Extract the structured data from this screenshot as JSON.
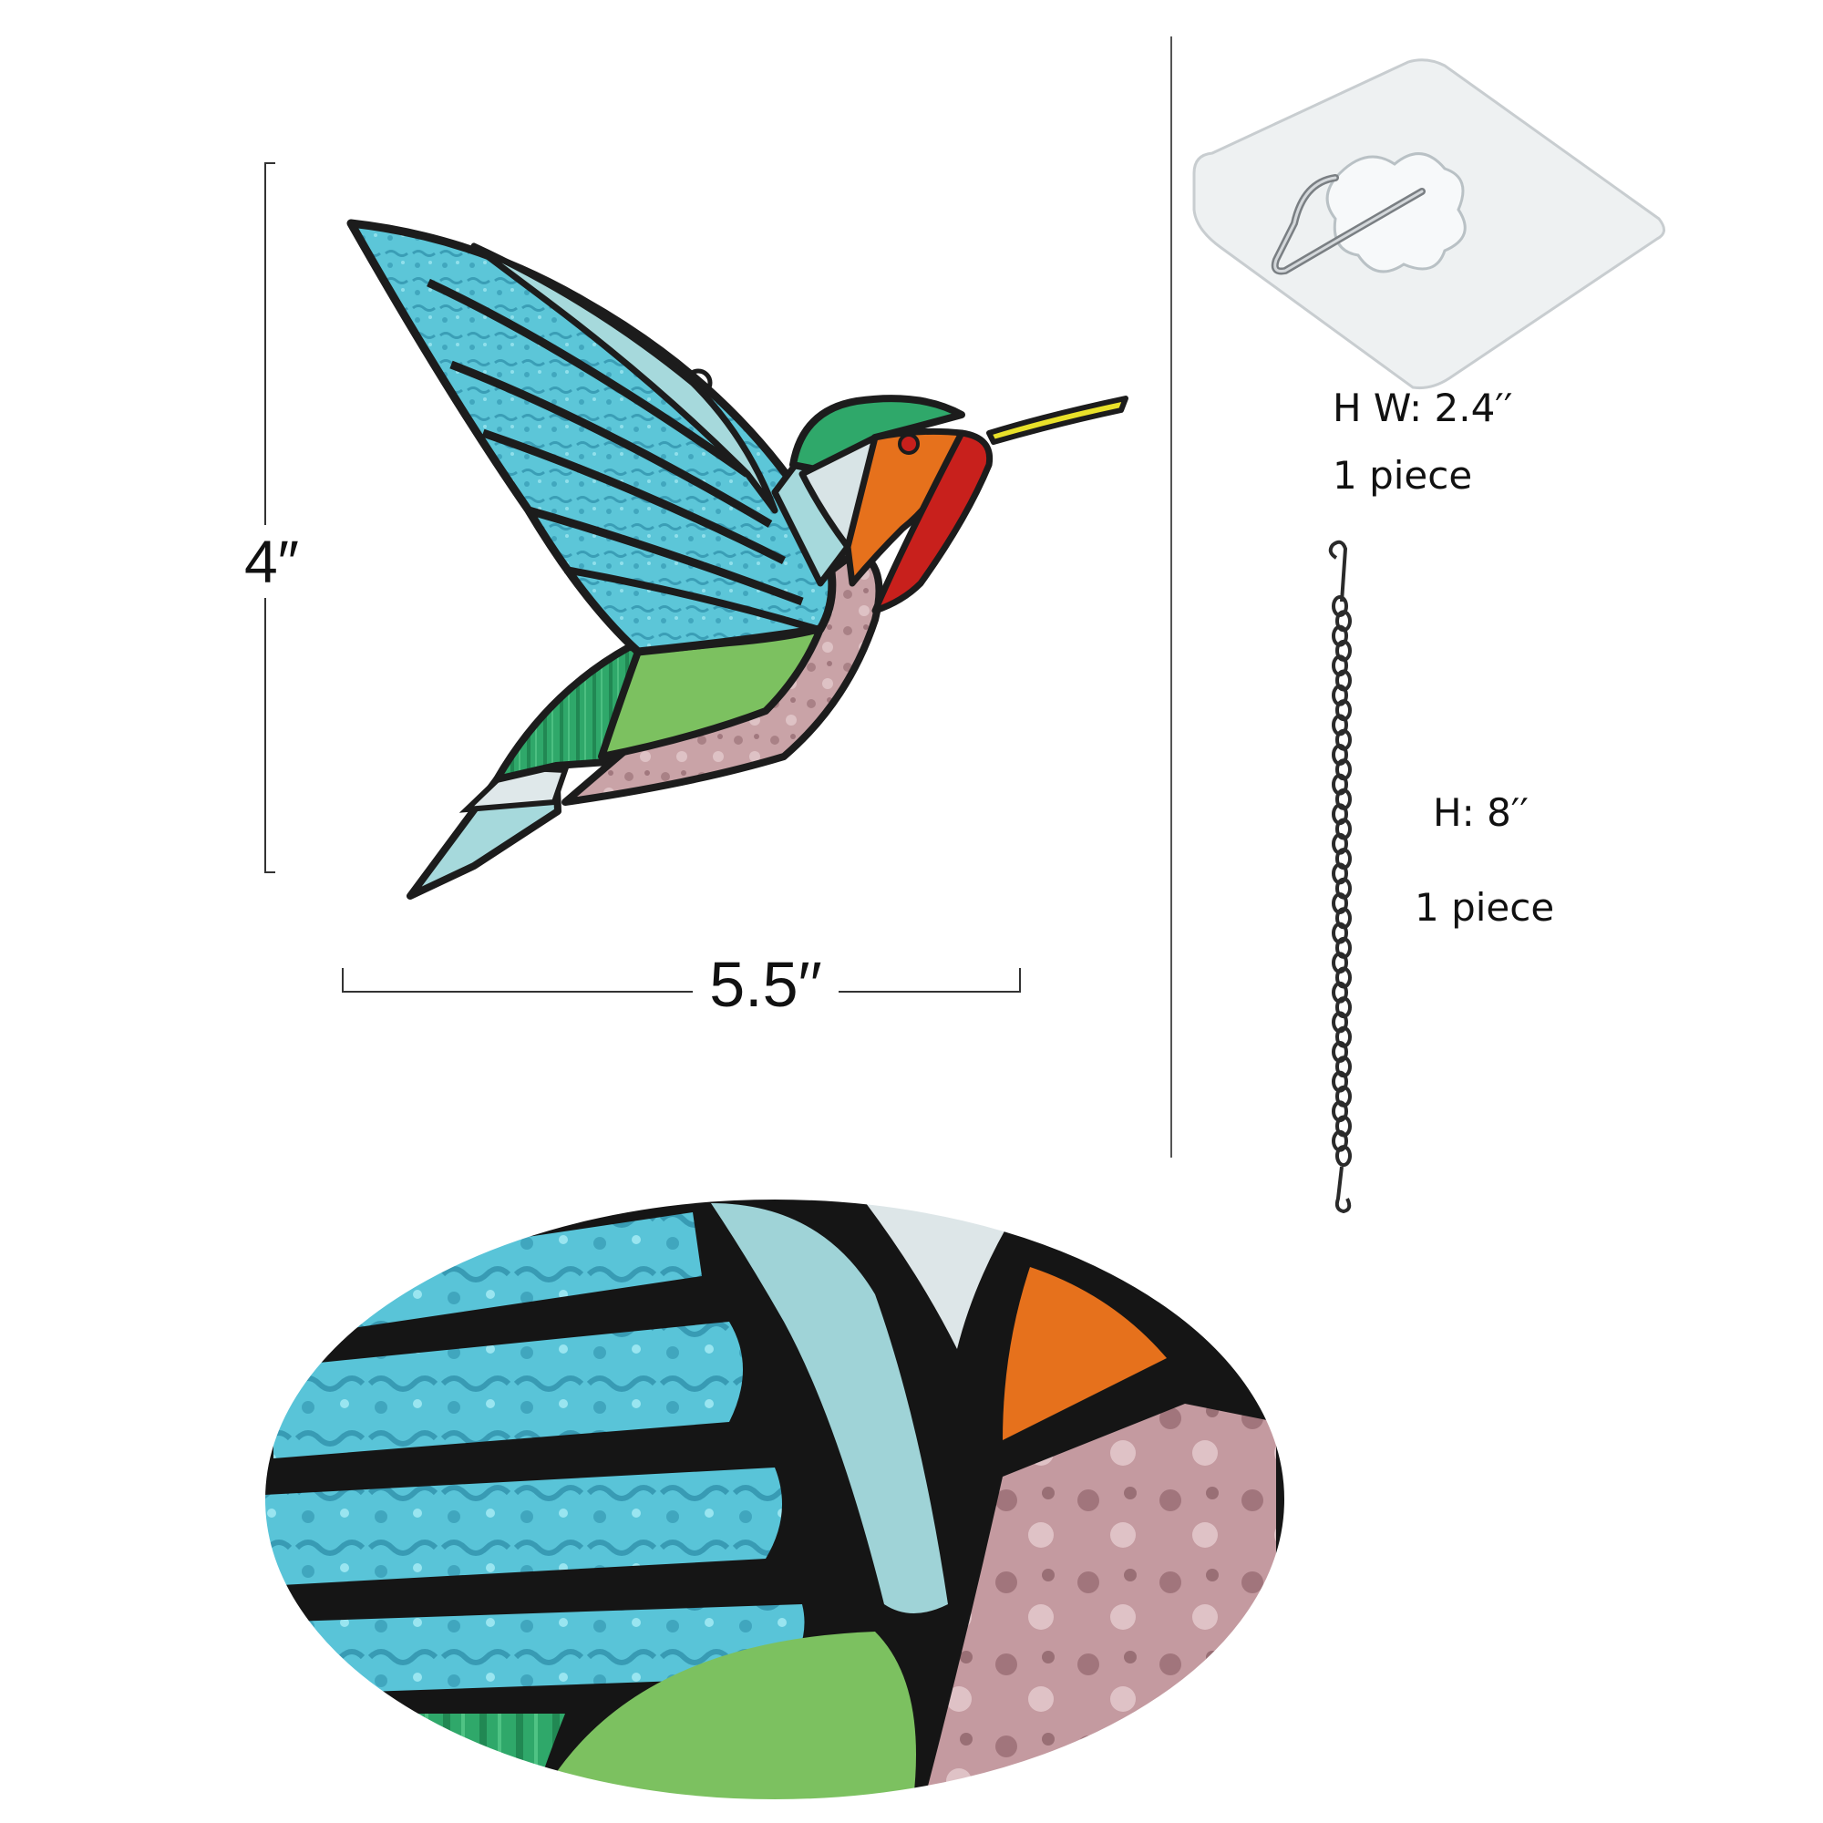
{
  "product": {
    "height_label": "4″",
    "width_label": "5.5′′"
  },
  "hook": {
    "size_label": "H W: 2.4′′",
    "quantity_label": "1 piece"
  },
  "chain": {
    "size_label": "H: 8′′",
    "quantity_label": "1 piece"
  },
  "colors": {
    "lead": "#1c1c1c",
    "wing_blue": "#5cc6d8",
    "pale_blue": "#a6d9dc",
    "green_glass": "#2fa86a",
    "body_green": "#7cc160",
    "pink_glass": "#c9a3a7",
    "orange_glass": "#e6711c",
    "red_glass": "#c8201c",
    "beak_yellow": "#e9e12a"
  }
}
